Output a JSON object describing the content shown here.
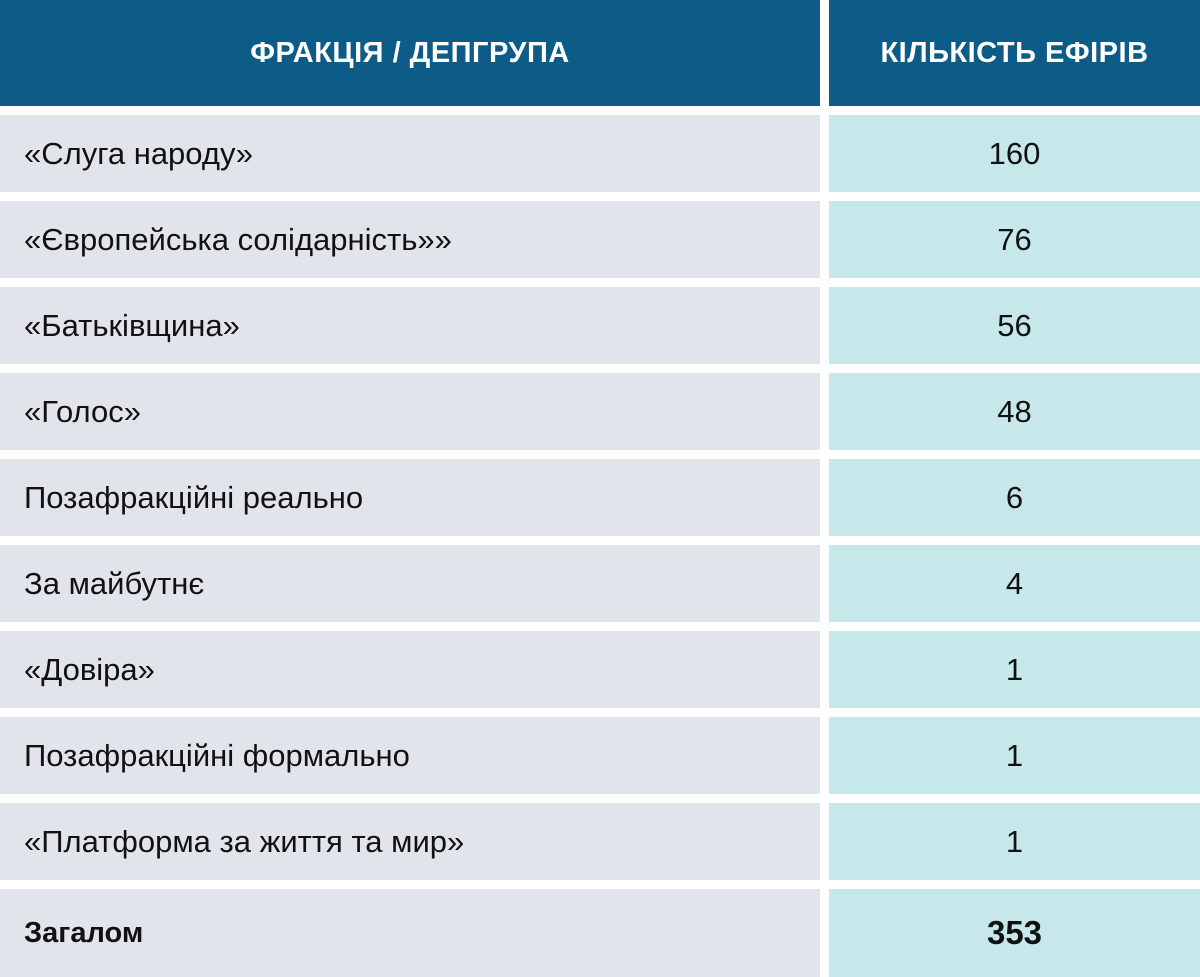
{
  "chart_data": {
    "type": "table",
    "columns": [
      "ФРАКЦІЯ / ДЕПГРУПА",
      "КІЛЬКІСТЬ ЕФІРІВ"
    ],
    "rows": [
      {
        "label": "«Слуга народу»",
        "value": "160"
      },
      {
        "label": "«Європейська солідарність»»",
        "value": "76"
      },
      {
        "label": "«Батьківщина»",
        "value": "56"
      },
      {
        "label": "«Голос»",
        "value": "48"
      },
      {
        "label": "Позафракційні реально",
        "value": "6"
      },
      {
        "label": "За майбутнє",
        "value": "4"
      },
      {
        "label": "«Довіра»",
        "value": "1"
      },
      {
        "label": "Позафракційні формально",
        "value": "1"
      },
      {
        "label": "«Платформа за життя та мир»",
        "value": "1"
      }
    ],
    "total": {
      "label": "Загалом",
      "value": "353"
    }
  },
  "colors": {
    "header_bg": "#0d5b87",
    "label_bg": "#e1e4eb",
    "value_bg": "#c6e8ea"
  }
}
